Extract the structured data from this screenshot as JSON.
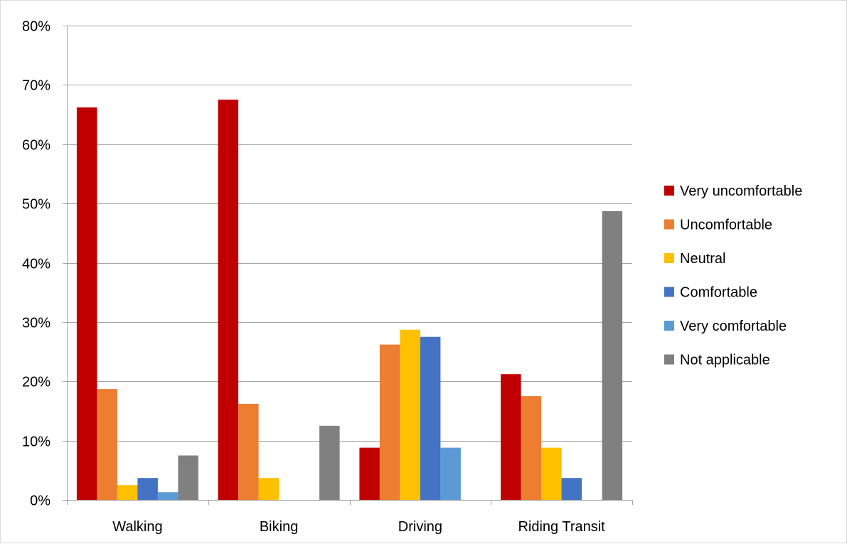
{
  "chart_data": {
    "type": "bar",
    "title": "",
    "xlabel": "",
    "ylabel": "",
    "ylim": [
      0,
      0.8
    ],
    "y_ticks": [
      0,
      0.1,
      0.2,
      0.3,
      0.4,
      0.5,
      0.6,
      0.7,
      0.8
    ],
    "y_tick_labels": [
      "0%",
      "10%",
      "20%",
      "30%",
      "40%",
      "50%",
      "60%",
      "70%",
      "80%"
    ],
    "grid": true,
    "legend_position": "right",
    "categories": [
      "Walking",
      "Biking",
      "Driving",
      "Riding Transit"
    ],
    "series": [
      {
        "name": "Very uncomfortable",
        "color": "#c00000",
        "values": [
          0.662,
          0.675,
          0.088,
          0.212
        ]
      },
      {
        "name": "Uncomfortable",
        "color": "#ed7d31",
        "values": [
          0.187,
          0.162,
          0.262,
          0.175
        ]
      },
      {
        "name": "Neutral",
        "color": "#ffc000",
        "values": [
          0.025,
          0.037,
          0.287,
          0.088
        ]
      },
      {
        "name": "Comfortable",
        "color": "#4472c4",
        "values": [
          0.037,
          0,
          0.275,
          0.037
        ]
      },
      {
        "name": "Very comfortable",
        "color": "#5b9bd5",
        "values": [
          0.013,
          0,
          0.088,
          0
        ]
      },
      {
        "name": "Not applicable",
        "color": "#808080",
        "values": [
          0.075,
          0.125,
          0,
          0.487
        ]
      }
    ]
  }
}
